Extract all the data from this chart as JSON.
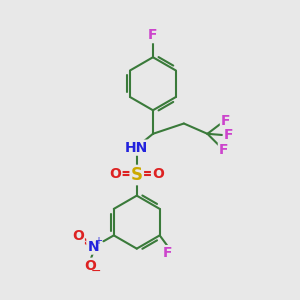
{
  "bg_color": "#e8e8e8",
  "bond_color": "#3a7a3a",
  "bond_width": 1.5,
  "atom_colors": {
    "F": "#cc44cc",
    "N": "#2222dd",
    "H": "#2222dd",
    "S": "#ccaa00",
    "O": "#dd2222",
    "NO2_N": "#2222dd",
    "C": "#3a7a3a"
  },
  "font_size": 10
}
